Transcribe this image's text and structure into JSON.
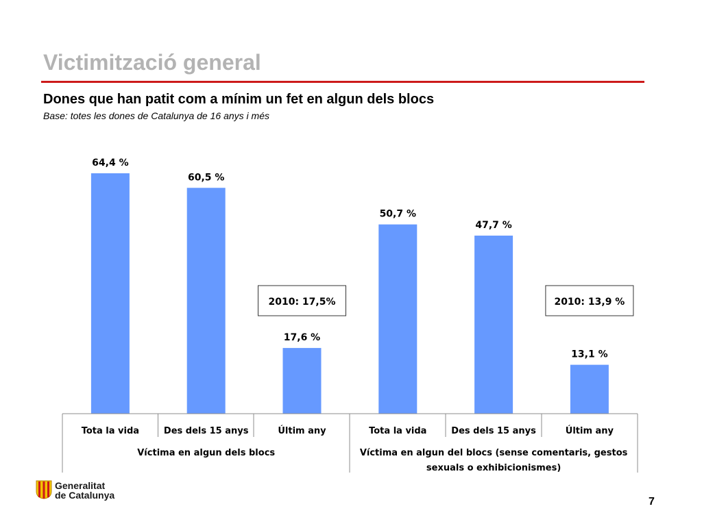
{
  "slide": {
    "title": "Victimització general",
    "page_number": "7"
  },
  "logo": {
    "line1": "Generalitat",
    "line2": "de Catalunya"
  },
  "chart_data": {
    "type": "bar",
    "title": "Dones que han patit com a mínim un fet en algun dels blocs",
    "subtitle": "Base: totes les dones de Catalunya de 16 anys i més",
    "categories": [
      "Tota la vida",
      "Des dels 15 anys",
      "Últim any",
      "Tota la vida",
      "Des dels 15 anys",
      "Últim any"
    ],
    "groups": [
      {
        "label": "Víctima en algun dels blocs",
        "categories": [
          0,
          1,
          2
        ]
      },
      {
        "label_line1": "Víctima en algun del blocs (sense comentaris, gestos",
        "label_line2": "sexuals o exhibicionismes)",
        "categories": [
          3,
          4,
          5
        ]
      }
    ],
    "values": [
      64.4,
      60.5,
      17.6,
      50.7,
      47.7,
      13.1
    ],
    "data_labels": [
      "64,4 %",
      "60,5 %",
      "17,6 %",
      "50,7 %",
      "47,7 %",
      "13,1 %"
    ],
    "annotations": [
      {
        "text": "2010: 17,5%",
        "category": 2
      },
      {
        "text": "2010: 13,9 %",
        "category": 5
      }
    ],
    "ylim": [
      0,
      70
    ],
    "grid": false,
    "legend": "none",
    "bar_color": "#6699ff"
  }
}
